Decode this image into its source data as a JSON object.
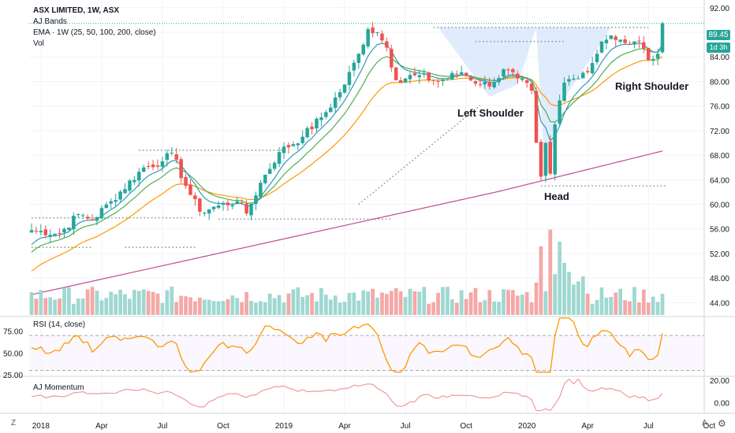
{
  "legend": {
    "symbol": "ASX LIMITED, 1W, ASX",
    "bands": "AJ Bands",
    "ema": "EMA · 1W (25, 50, 100, 200, close)",
    "vol": "Vol"
  },
  "rsi_label": "RSI (14, close)",
  "mom_label": "AJ Momentum",
  "price_tag": "89.45",
  "time_tag": "1d 3h",
  "annotations": {
    "left_shoulder": "Left Shoulder",
    "head": "Head",
    "right_shoulder": "Right Shoulder"
  },
  "side": {
    "z": "Z",
    "a": "A",
    "settings": "⚙"
  },
  "colors": {
    "up": "#26a69a",
    "down": "#ef5350",
    "ema25": "#2e9ab8",
    "ema50": "#4caf50",
    "ema100": "#ff9800",
    "ema200": "#c04a90",
    "rsi": "#ff9800",
    "mom": "#ef9a9a",
    "pattern": "#d6e4fb"
  },
  "chart_data": [
    {
      "type": "candlestick",
      "title": "ASX LIMITED, 1W, ASX",
      "price_axis_ticks": [
        "92.00",
        "88.00",
        "84.00",
        "80.00",
        "76.00",
        "72.00",
        "68.00",
        "64.00",
        "60.00",
        "56.00",
        "52.00",
        "48.00",
        "44.00"
      ],
      "time_axis_ticks": [
        "2018",
        "Apr",
        "Jul",
        "Oct",
        "2019",
        "Apr",
        "Jul",
        "Oct",
        "2020",
        "Apr",
        "Jul",
        "Oct"
      ],
      "ylim": [
        42,
        93
      ],
      "last_price": 89.45,
      "close_anchors": [
        [
          0,
          55.8
        ],
        [
          6,
          55.2
        ],
        [
          10,
          58.4
        ],
        [
          13,
          57.5
        ],
        [
          17,
          60.5
        ],
        [
          24,
          66.0
        ],
        [
          28,
          67.0
        ],
        [
          30,
          68.4
        ],
        [
          33,
          63.0
        ],
        [
          36,
          58.8
        ],
        [
          40,
          59.8
        ],
        [
          44,
          60.5
        ],
        [
          46,
          58.5
        ],
        [
          49,
          63.5
        ],
        [
          53,
          68.5
        ],
        [
          58,
          71.0
        ],
        [
          63,
          75.0
        ],
        [
          67,
          79.5
        ],
        [
          70,
          84.5
        ],
        [
          72,
          88.5
        ],
        [
          74,
          88.0
        ],
        [
          76,
          85.5
        ],
        [
          78,
          80.2
        ],
        [
          82,
          81.0
        ],
        [
          87,
          80.0
        ],
        [
          92,
          81.5
        ],
        [
          96,
          79.5
        ],
        [
          99,
          79.8
        ],
        [
          101,
          82.0
        ],
        [
          104,
          80.5
        ],
        [
          107,
          78.5
        ],
        [
          108,
          70.0
        ],
        [
          109,
          64.5
        ],
        [
          110,
          70.0
        ],
        [
          111,
          65.0
        ],
        [
          112,
          73.0
        ],
        [
          114,
          79.8
        ],
        [
          117,
          80.5
        ],
        [
          120,
          83.0
        ],
        [
          122,
          86.5
        ],
        [
          124,
          87.5
        ],
        [
          126,
          86.8
        ],
        [
          128,
          86.0
        ],
        [
          130,
          86.5
        ],
        [
          132,
          83.5
        ],
        [
          134,
          84.5
        ],
        [
          135,
          89.45
        ]
      ],
      "ema_series": [
        "EMA25",
        "EMA50",
        "EMA100",
        "EMA200"
      ],
      "band_levels": [
        57.8,
        68.8,
        88.8,
        63.0
      ]
    },
    {
      "type": "bar",
      "title": "Vol",
      "note": "weekly volume, colored by candle direction"
    },
    {
      "type": "line",
      "title": "RSI (14, close)",
      "y_ticks": [
        "75.00",
        "50.00",
        "25.00"
      ],
      "ylim": [
        25,
        90
      ]
    },
    {
      "type": "line",
      "title": "AJ Momentum",
      "y_ticks": [
        "20.00",
        "0.00"
      ],
      "ylim": [
        -8,
        22
      ]
    }
  ]
}
